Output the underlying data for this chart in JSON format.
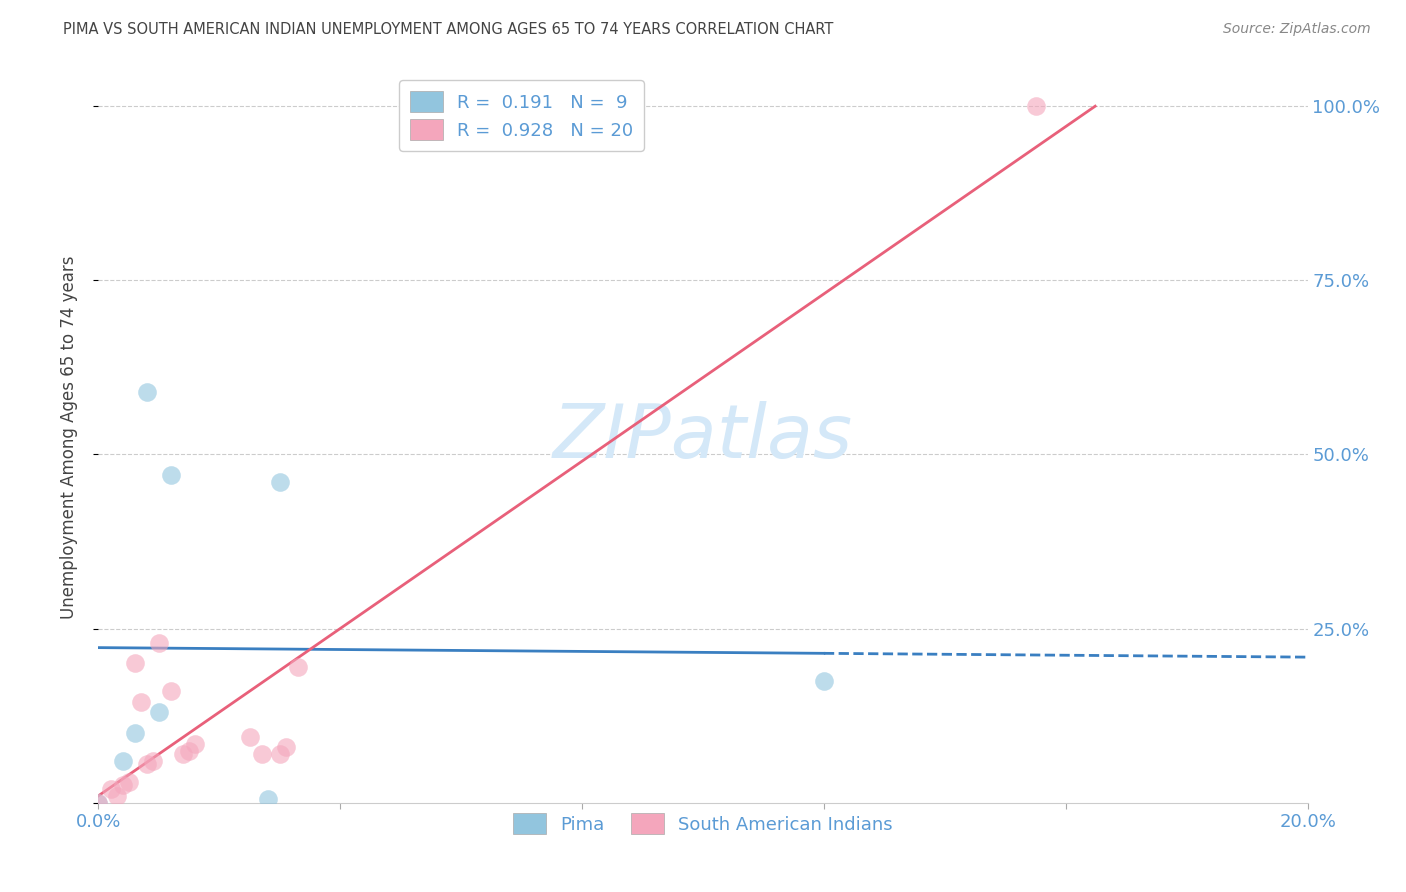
{
  "title": "PIMA VS SOUTH AMERICAN INDIAN UNEMPLOYMENT AMONG AGES 65 TO 74 YEARS CORRELATION CHART",
  "source": "Source: ZipAtlas.com",
  "ylabel": "Unemployment Among Ages 65 to 74 years",
  "xlim": [
    0.0,
    0.2
  ],
  "ylim": [
    0.0,
    1.05
  ],
  "xticks": [
    0.0,
    0.04,
    0.08,
    0.12,
    0.16,
    0.2
  ],
  "xtick_labels": [
    "0.0%",
    "",
    "",
    "",
    "",
    "20.0%"
  ],
  "yticks": [
    0.0,
    0.25,
    0.5,
    0.75,
    1.0
  ],
  "ytick_labels": [
    "",
    "25.0%",
    "50.0%",
    "75.0%",
    "100.0%"
  ],
  "pima_x": [
    0.0,
    0.004,
    0.006,
    0.008,
    0.01,
    0.012,
    0.028,
    0.03,
    0.12
  ],
  "pima_y": [
    0.0,
    0.06,
    0.1,
    0.59,
    0.13,
    0.47,
    0.005,
    0.46,
    0.175
  ],
  "sa_x": [
    0.0,
    0.002,
    0.003,
    0.004,
    0.005,
    0.006,
    0.007,
    0.008,
    0.009,
    0.01,
    0.012,
    0.014,
    0.015,
    0.016,
    0.025,
    0.027,
    0.03,
    0.031,
    0.033,
    0.155
  ],
  "sa_y": [
    0.0,
    0.02,
    0.01,
    0.025,
    0.03,
    0.2,
    0.145,
    0.055,
    0.06,
    0.23,
    0.16,
    0.07,
    0.075,
    0.085,
    0.095,
    0.07,
    0.07,
    0.08,
    0.195,
    1.0
  ],
  "pima_R": 0.191,
  "pima_N": 9,
  "sa_R": 0.928,
  "sa_N": 20,
  "pima_color": "#92c5de",
  "sa_color": "#f4a6bc",
  "pima_line_color": "#3a7fc1",
  "sa_line_color": "#e8607a",
  "title_color": "#444444",
  "axis_label_color": "#5b9bd5",
  "right_axis_color": "#5b9bd5",
  "watermark_color": "#d4e8f8",
  "background_color": "#ffffff",
  "grid_color": "#cccccc",
  "legend_text_color": "#444444",
  "legend_value_color": "#5b9bd5",
  "bottom_legend_color": "#5b9bd5"
}
